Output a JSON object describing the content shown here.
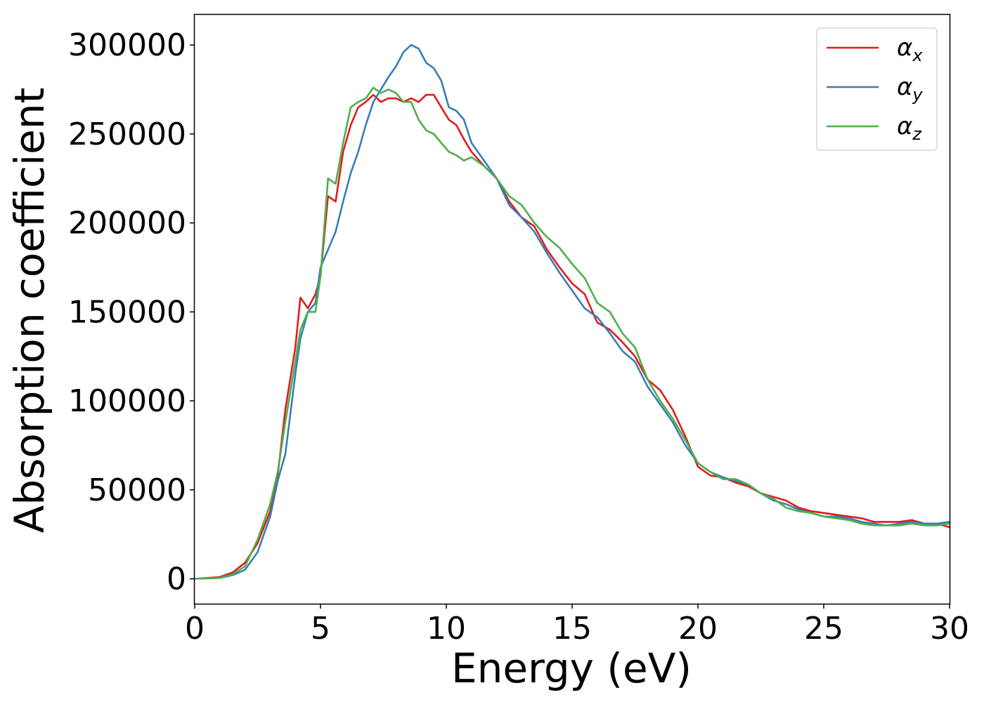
{
  "chart_data": {
    "type": "line",
    "title": "",
    "xlabel": "Energy (eV)",
    "ylabel": "Absorption coefficient",
    "xlim": [
      0,
      30
    ],
    "ylim": [
      -14000,
      317000
    ],
    "xticks": [
      0,
      5,
      10,
      15,
      20,
      25,
      30
    ],
    "xtick_labels": [
      "0",
      "5",
      "10",
      "15",
      "20",
      "25",
      "30"
    ],
    "yticks": [
      0,
      50000,
      100000,
      150000,
      200000,
      250000,
      300000
    ],
    "ytick_labels": [
      "0",
      "50000",
      "100000",
      "150000",
      "200000",
      "250000",
      "300000"
    ],
    "grid": false,
    "legend_position": "top-right",
    "series": [
      {
        "name": "α_x",
        "legend_symbol": "α",
        "legend_subscript": "x",
        "color": "#e41a1c",
        "x": [
          0,
          1,
          1.5,
          2,
          2.5,
          3,
          3.3,
          3.6,
          4,
          4.2,
          4.5,
          4.8,
          5,
          5.3,
          5.6,
          5.9,
          6.2,
          6.5,
          6.8,
          7.1,
          7.4,
          7.7,
          8,
          8.3,
          8.6,
          8.9,
          9.2,
          9.5,
          9.8,
          10.1,
          10.4,
          10.7,
          11,
          11.5,
          12,
          12.5,
          13,
          13.5,
          14,
          14.5,
          15,
          15.5,
          16,
          16.5,
          17,
          17.5,
          18,
          18.5,
          19,
          19.5,
          20,
          20.5,
          21,
          21.5,
          22,
          22.5,
          23,
          23.5,
          24,
          24.5,
          25,
          25.5,
          26,
          26.5,
          27,
          27.5,
          28,
          28.5,
          29,
          29.5,
          30
        ],
        "y": [
          0,
          1000,
          3500,
          9000,
          20000,
          38000,
          58000,
          95000,
          130000,
          158000,
          152000,
          160000,
          170000,
          215000,
          212000,
          240000,
          255000,
          265000,
          268000,
          272000,
          268000,
          270000,
          270000,
          268000,
          270000,
          268000,
          272000,
          272000,
          265000,
          258000,
          255000,
          247000,
          240000,
          232000,
          225000,
          212000,
          203000,
          198000,
          185000,
          175000,
          166000,
          160000,
          144000,
          140000,
          133000,
          125000,
          112000,
          106000,
          95000,
          80000,
          63000,
          58000,
          57000,
          54000,
          52000,
          48000,
          46000,
          44000,
          40000,
          38000,
          37000,
          36000,
          35000,
          34000,
          32000,
          32000,
          32000,
          33000,
          31000,
          31000,
          29000
        ]
      },
      {
        "name": "α_y",
        "legend_symbol": "α",
        "legend_subscript": "y",
        "color": "#377eb8",
        "x": [
          0,
          1,
          1.5,
          2,
          2.5,
          3,
          3.3,
          3.6,
          4,
          4.2,
          4.5,
          4.8,
          5,
          5.3,
          5.6,
          5.9,
          6.2,
          6.5,
          6.8,
          7.1,
          7.4,
          7.7,
          8,
          8.3,
          8.6,
          8.9,
          9.2,
          9.5,
          9.8,
          10.1,
          10.4,
          10.7,
          11,
          11.5,
          12,
          12.5,
          13,
          13.5,
          14,
          14.5,
          15,
          15.5,
          16,
          16.5,
          17,
          17.5,
          18,
          18.5,
          19,
          19.5,
          20,
          20.5,
          21,
          21.5,
          22,
          22.5,
          23,
          23.5,
          24,
          24.5,
          25,
          25.5,
          26,
          26.5,
          27,
          27.5,
          28,
          28.5,
          29,
          29.5,
          30
        ],
        "y": [
          0,
          500,
          2000,
          5000,
          15000,
          35000,
          55000,
          70000,
          115000,
          135000,
          150000,
          155000,
          175000,
          185000,
          195000,
          212000,
          228000,
          240000,
          255000,
          268000,
          275000,
          282000,
          288000,
          296000,
          300000,
          298000,
          290000,
          287000,
          280000,
          265000,
          263000,
          258000,
          245000,
          235000,
          225000,
          210000,
          203000,
          195000,
          183000,
          172000,
          162000,
          152000,
          147000,
          138000,
          128000,
          122000,
          108000,
          98000,
          88000,
          75000,
          65000,
          60000,
          57000,
          55000,
          53000,
          48000,
          44000,
          42000,
          39000,
          37000,
          35000,
          35000,
          34000,
          32000,
          31000,
          30000,
          31000,
          32000,
          31000,
          31000,
          32000
        ]
      },
      {
        "name": "α_z",
        "legend_symbol": "α",
        "legend_subscript": "z",
        "color": "#4daf4a",
        "x": [
          0,
          1,
          1.5,
          2,
          2.5,
          3,
          3.3,
          3.6,
          4,
          4.2,
          4.5,
          4.8,
          5,
          5.3,
          5.6,
          5.9,
          6.2,
          6.5,
          6.8,
          7.1,
          7.4,
          7.7,
          8,
          8.3,
          8.6,
          8.9,
          9.2,
          9.5,
          9.8,
          10.1,
          10.4,
          10.7,
          11,
          11.5,
          12,
          12.5,
          13,
          13.5,
          14,
          14.5,
          15,
          15.5,
          16,
          16.5,
          17,
          17.5,
          18,
          18.5,
          19,
          19.5,
          20,
          20.5,
          21,
          21.5,
          22,
          22.5,
          23,
          23.5,
          24,
          24.5,
          25,
          25.5,
          26,
          26.5,
          27,
          27.5,
          28,
          28.5,
          29,
          29.5,
          30
        ],
        "y": [
          0,
          500,
          2500,
          7000,
          22000,
          42000,
          60000,
          88000,
          122000,
          140000,
          150000,
          150000,
          170000,
          225000,
          222000,
          245000,
          265000,
          268000,
          270000,
          276000,
          273000,
          275000,
          273000,
          268000,
          268000,
          258000,
          252000,
          250000,
          245000,
          240000,
          238000,
          235000,
          237000,
          232000,
          225000,
          215000,
          210000,
          200000,
          192000,
          186000,
          177000,
          169000,
          155000,
          150000,
          138000,
          130000,
          112000,
          100000,
          90000,
          78000,
          65000,
          60000,
          56000,
          56000,
          53000,
          48000,
          45000,
          40000,
          38000,
          37000,
          35000,
          34000,
          33000,
          31000,
          30000,
          30000,
          30000,
          31000,
          30000,
          30000,
          31000
        ]
      }
    ]
  }
}
